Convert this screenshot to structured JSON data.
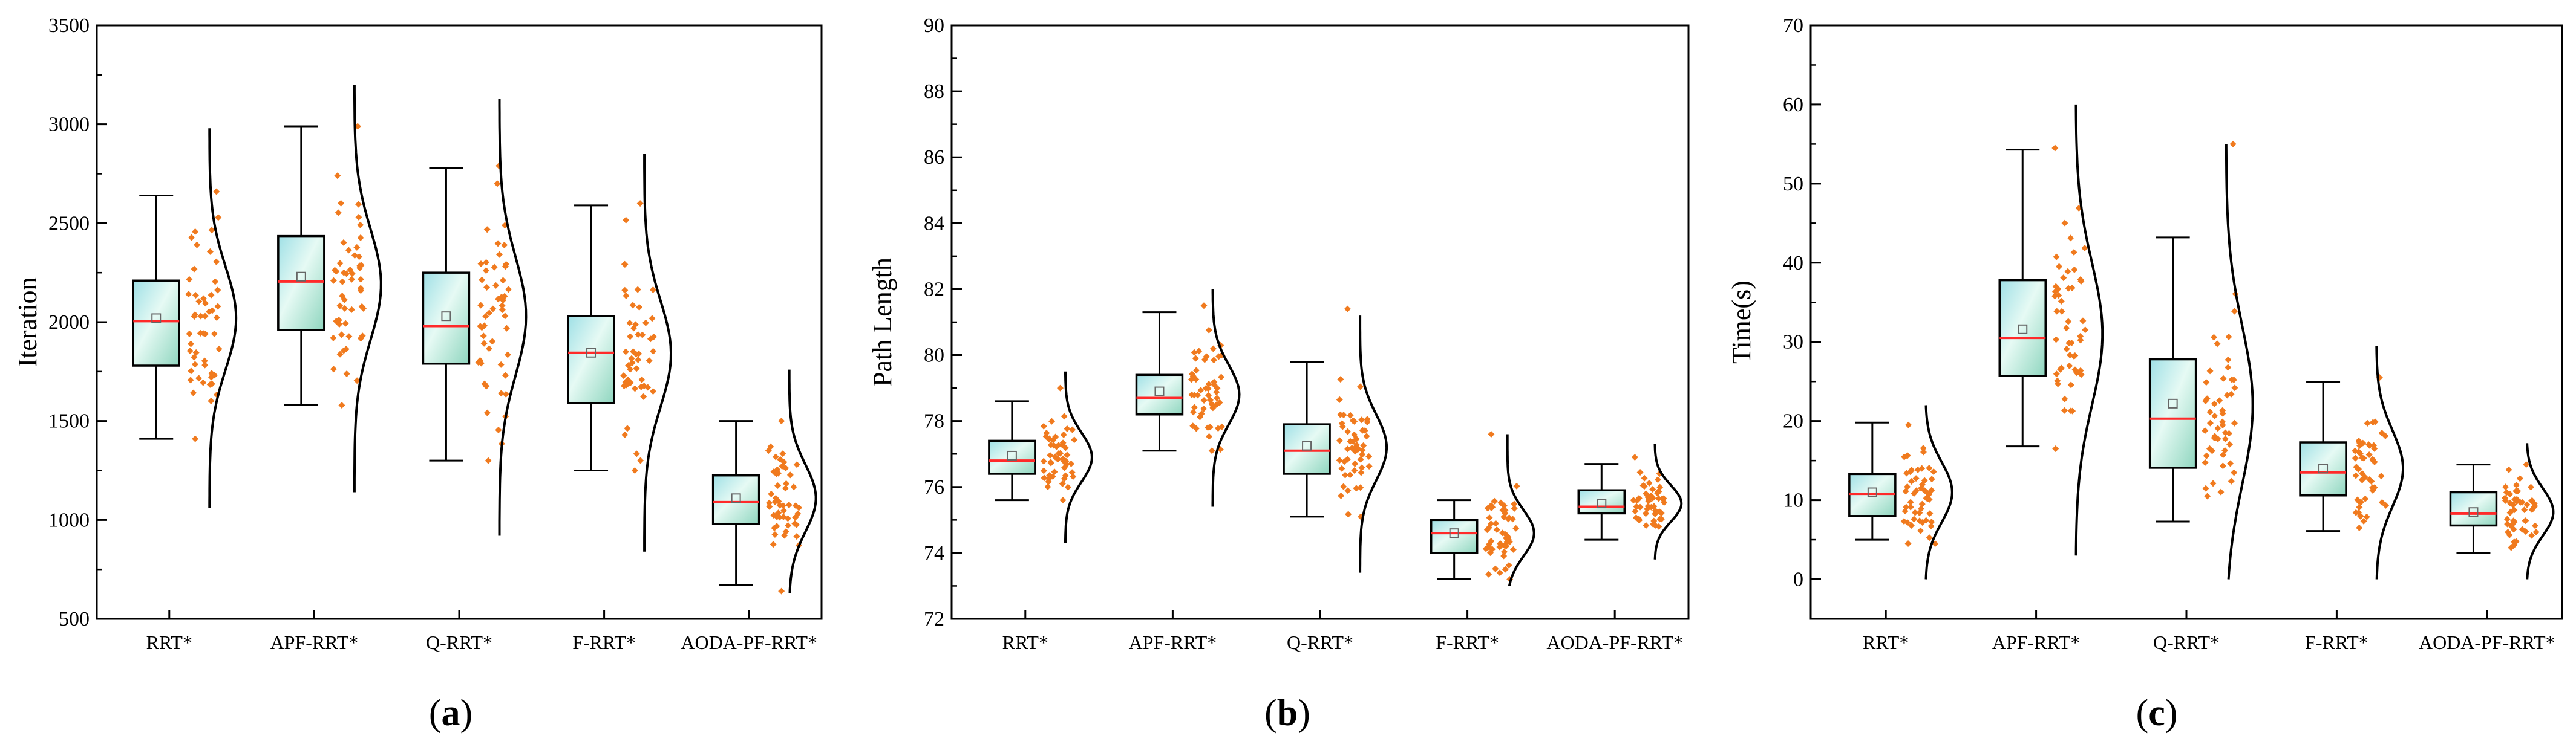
{
  "colors": {
    "box_fill_top": "#a9e6e4",
    "box_fill_mid": "#e2f8f4",
    "box_fill_edge": "#8fd7c6",
    "median": "#ff2a2a",
    "points": "#f07a1e",
    "axis": "#000000",
    "mean_marker": "#666666"
  },
  "chart_data": [
    {
      "type": "box",
      "label": "(a)",
      "ylabel": "Iteration",
      "xlabel": "",
      "ylim": [
        500,
        3500
      ],
      "yticks": [
        "500",
        "1000",
        "1500",
        "2000",
        "2500",
        "3000",
        "3500"
      ],
      "minor_step": 250,
      "categories": [
        "RRT*",
        "APF-RRT*",
        "Q-RRT*",
        "F-RRT*",
        "AODA-PF-RRT*"
      ],
      "series": [
        {
          "name": "RRT*",
          "min": 1410,
          "q1": 1780,
          "median": 2005,
          "q3": 2210,
          "max": 2640,
          "mean": 2020,
          "pmin": 1410,
          "pmax": 2660,
          "dist_mean": 2020,
          "dist_sd": 260,
          "dist_lo": 1060,
          "dist_hi": 2980
        },
        {
          "name": "APF-RRT*",
          "min": 1580,
          "q1": 1960,
          "median": 2205,
          "q3": 2435,
          "max": 2990,
          "mean": 2230,
          "pmin": 1580,
          "pmax": 2990,
          "dist_mean": 2190,
          "dist_sd": 280,
          "dist_lo": 1140,
          "dist_hi": 3200
        },
        {
          "name": "Q-RRT*",
          "min": 1300,
          "q1": 1790,
          "median": 1980,
          "q3": 2250,
          "max": 2780,
          "mean": 2030,
          "pmin": 1300,
          "pmax": 2790,
          "dist_mean": 2030,
          "dist_sd": 300,
          "dist_lo": 920,
          "dist_hi": 3130
        },
        {
          "name": "F-RRT*",
          "min": 1250,
          "q1": 1590,
          "median": 1845,
          "q3": 2030,
          "max": 2590,
          "mean": 1845,
          "pmin": 1250,
          "pmax": 2600,
          "dist_mean": 1840,
          "dist_sd": 270,
          "dist_lo": 840,
          "dist_hi": 2850
        },
        {
          "name": "AODA-PF-RRT*",
          "min": 670,
          "q1": 980,
          "median": 1090,
          "q3": 1225,
          "max": 1500,
          "mean": 1110,
          "pmin": 640,
          "pmax": 1500,
          "dist_mean": 1110,
          "dist_sd": 170,
          "dist_lo": 630,
          "dist_hi": 1760
        }
      ]
    },
    {
      "type": "box",
      "label": "(b)",
      "ylabel": "Path Length",
      "xlabel": "",
      "ylim": [
        72,
        90
      ],
      "yticks": [
        "72",
        "74",
        "76",
        "78",
        "80",
        "82",
        "84",
        "86",
        "88",
        "90"
      ],
      "minor_step": 1,
      "categories": [
        "RRT*",
        "APF-RRT*",
        "Q-RRT*",
        "F-RRT*",
        "AODA-PF-RRT*"
      ],
      "series": [
        {
          "name": "RRT*",
          "min": 75.6,
          "q1": 76.4,
          "median": 76.8,
          "q3": 77.4,
          "max": 78.6,
          "mean": 76.95,
          "pmin": 75.6,
          "pmax": 79.0,
          "dist_mean": 76.9,
          "dist_sd": 0.75,
          "dist_lo": 74.3,
          "dist_hi": 79.5
        },
        {
          "name": "APF-RRT*",
          "min": 77.1,
          "q1": 78.2,
          "median": 78.7,
          "q3": 79.4,
          "max": 81.3,
          "mean": 78.9,
          "pmin": 77.1,
          "pmax": 81.5,
          "dist_mean": 78.8,
          "dist_sd": 0.9,
          "dist_lo": 75.4,
          "dist_hi": 82.0
        },
        {
          "name": "Q-RRT*",
          "min": 75.1,
          "q1": 76.4,
          "median": 77.1,
          "q3": 77.9,
          "max": 79.8,
          "mean": 77.25,
          "pmin": 75.1,
          "pmax": 81.4,
          "dist_mean": 77.2,
          "dist_sd": 1.0,
          "dist_lo": 73.4,
          "dist_hi": 81.2
        },
        {
          "name": "F-RRT*",
          "min": 73.2,
          "q1": 74.0,
          "median": 74.6,
          "q3": 75.0,
          "max": 75.6,
          "mean": 74.6,
          "pmin": 73.2,
          "pmax": 77.6,
          "dist_mean": 74.6,
          "dist_sd": 0.7,
          "dist_lo": 73.0,
          "dist_hi": 77.6
        },
        {
          "name": "AODA-PF-RRT*",
          "min": 74.4,
          "q1": 75.2,
          "median": 75.4,
          "q3": 75.9,
          "max": 76.7,
          "mean": 75.5,
          "pmin": 74.8,
          "pmax": 76.9,
          "dist_mean": 75.5,
          "dist_sd": 0.55,
          "dist_lo": 73.8,
          "dist_hi": 77.3
        }
      ]
    },
    {
      "type": "box",
      "label": "(c)",
      "ylabel": "Time(s)",
      "xlabel": "",
      "ylim": [
        -5,
        70
      ],
      "yticks": [
        "0",
        "10",
        "20",
        "30",
        "40",
        "50",
        "60",
        "70"
      ],
      "ytick_values": [
        0,
        10,
        20,
        30,
        40,
        50,
        60,
        70
      ],
      "minor_step": 5,
      "categories": [
        "RRT*",
        "APF-RRT*",
        "Q-RRT*",
        "F-RRT*",
        "AODA-PF-RRT*"
      ],
      "series": [
        {
          "name": "RRT*",
          "min": 5,
          "q1": 8,
          "median": 10.8,
          "q3": 13.3,
          "max": 19.8,
          "mean": 11,
          "pmin": 4.5,
          "pmax": 19.5,
          "dist_mean": 11,
          "dist_sd": 3.8,
          "dist_lo": 0,
          "dist_hi": 22
        },
        {
          "name": "APF-RRT*",
          "min": 16.8,
          "q1": 25.7,
          "median": 30.5,
          "q3": 37.8,
          "max": 54.3,
          "mean": 31.6,
          "pmin": 16.5,
          "pmax": 54.5,
          "dist_mean": 31,
          "dist_sd": 9,
          "dist_lo": 3,
          "dist_hi": 60
        },
        {
          "name": "Q-RRT*",
          "min": 7.3,
          "q1": 14.1,
          "median": 20.3,
          "q3": 27.8,
          "max": 43.2,
          "mean": 22.2,
          "pmin": 10.5,
          "pmax": 55,
          "dist_mean": 22,
          "dist_sd": 10,
          "dist_lo": 0,
          "dist_hi": 55
        },
        {
          "name": "F-RRT*",
          "min": 6.1,
          "q1": 10.6,
          "median": 13.5,
          "q3": 17.3,
          "max": 24.9,
          "mean": 14,
          "pmin": 6.5,
          "pmax": 25.5,
          "dist_mean": 14,
          "dist_sd": 4.8,
          "dist_lo": 0,
          "dist_hi": 29.5
        },
        {
          "name": "AODA-PF-RRT*",
          "min": 3.3,
          "q1": 6.8,
          "median": 8.3,
          "q3": 11.0,
          "max": 14.5,
          "mean": 8.5,
          "pmin": 4,
          "pmax": 14.5,
          "dist_mean": 8.5,
          "dist_sd": 3,
          "dist_lo": 0,
          "dist_hi": 17.2
        }
      ]
    }
  ]
}
